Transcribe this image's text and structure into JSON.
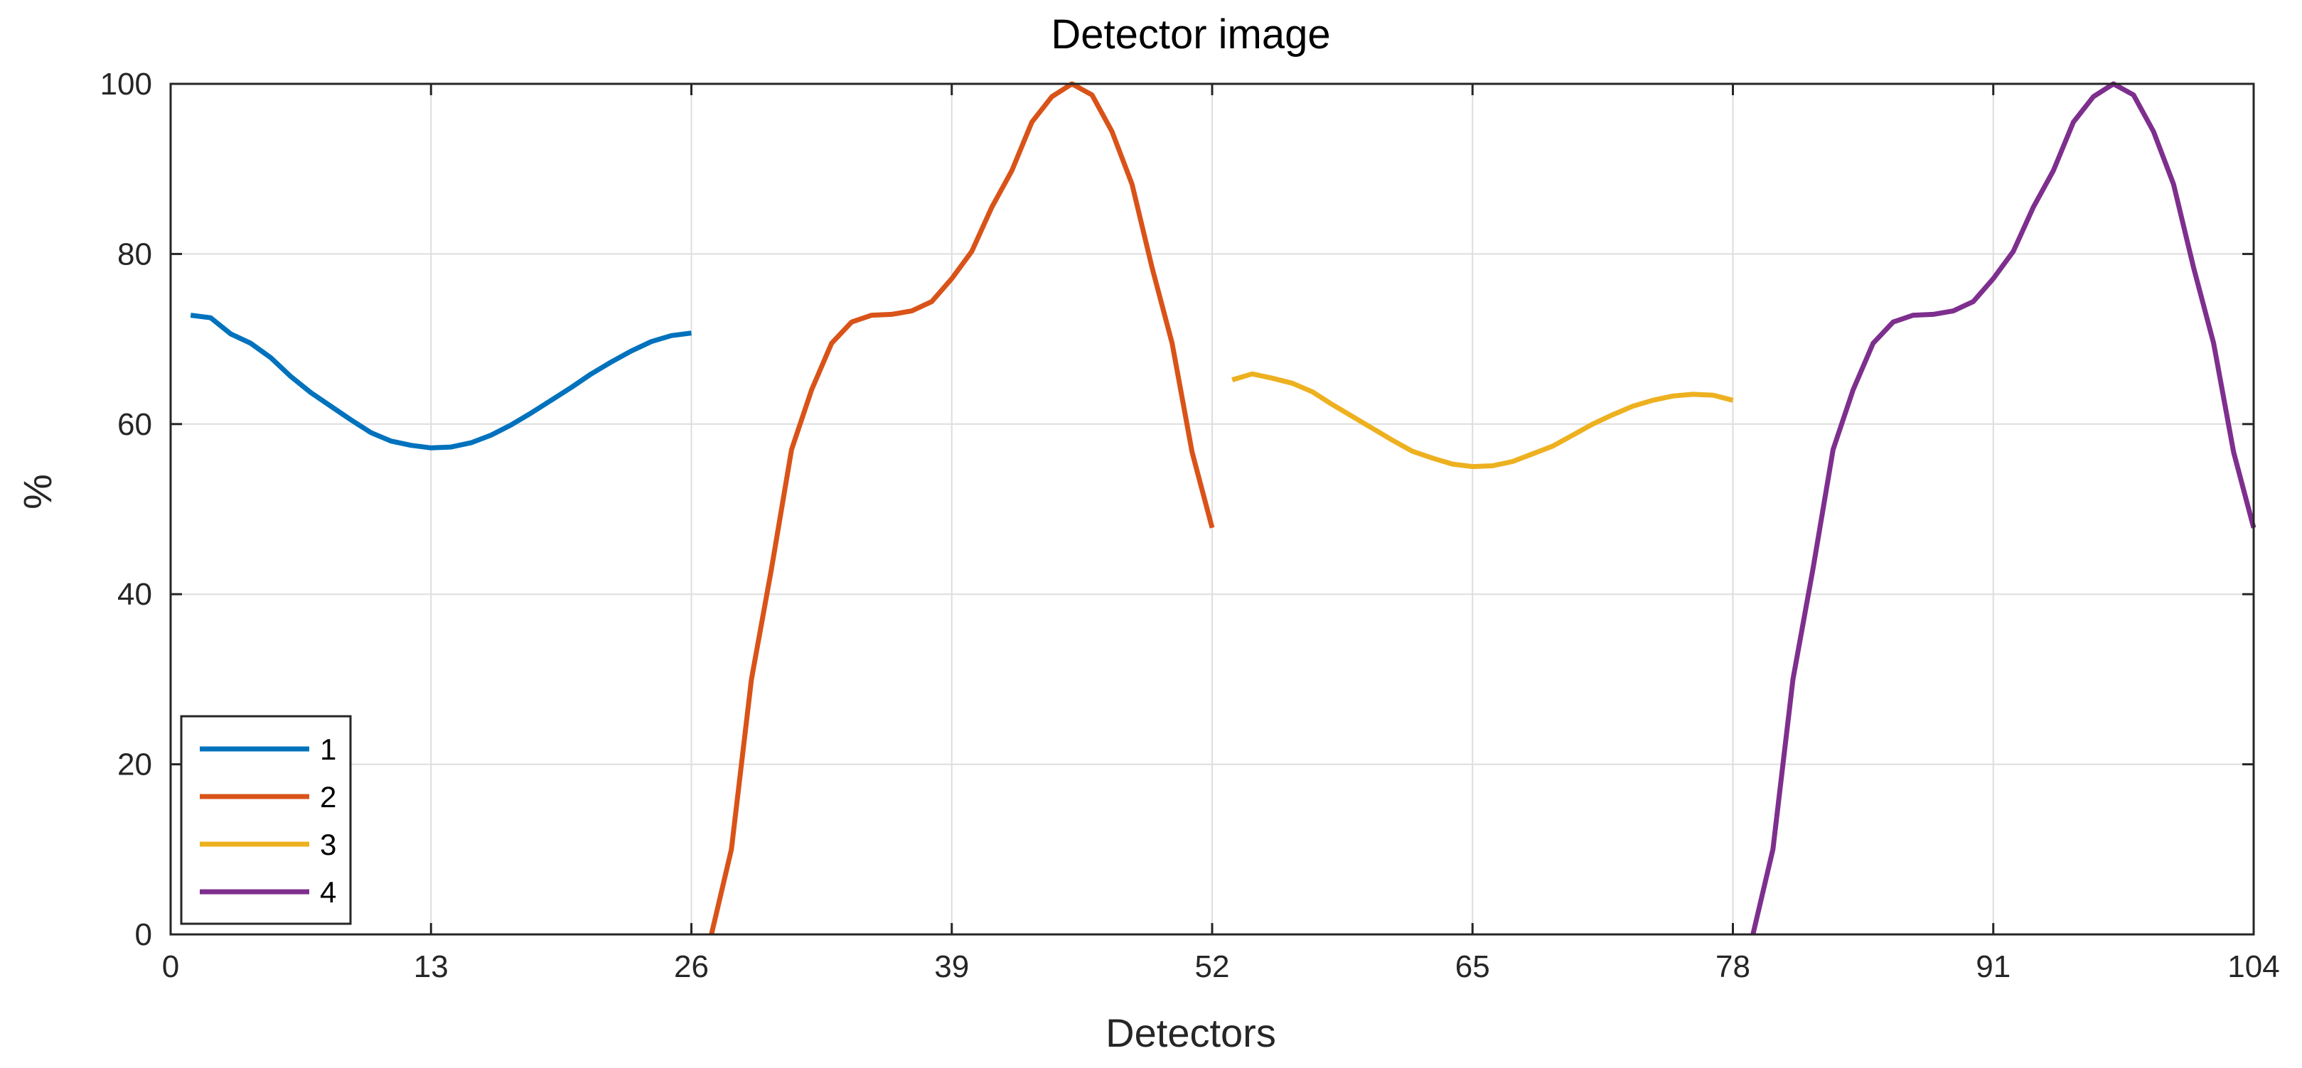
{
  "chart_data": {
    "type": "line",
    "title": "Detector image",
    "xlabel": "Detectors",
    "ylabel": "%",
    "xlim": [
      0,
      104
    ],
    "ylim": [
      0,
      100
    ],
    "xticks": [
      0,
      13,
      26,
      39,
      52,
      65,
      78,
      91,
      104
    ],
    "yticks": [
      0,
      20,
      40,
      60,
      80,
      100
    ],
    "grid": true,
    "legend_position": "bottom-left",
    "series": [
      {
        "name": "1",
        "color": "#0072BD",
        "x": [
          1,
          2,
          3,
          4,
          5,
          6,
          7,
          8,
          9,
          10,
          11,
          12,
          13,
          14,
          15,
          16,
          17,
          18,
          19,
          20,
          21,
          22,
          23,
          24,
          25,
          26
        ],
        "y": [
          72.8,
          72.5,
          70.6,
          69.5,
          67.8,
          65.6,
          63.7,
          62.1,
          60.5,
          59.0,
          58.0,
          57.5,
          57.2,
          57.3,
          57.8,
          58.7,
          59.9,
          61.3,
          62.8,
          64.3,
          65.9,
          67.3,
          68.6,
          69.7,
          70.4,
          70.7
        ]
      },
      {
        "name": "2",
        "color": "#D95319",
        "x": [
          27,
          28,
          29,
          30,
          31,
          32,
          33,
          34,
          35,
          36,
          37,
          38,
          39,
          40,
          41,
          42,
          43,
          44,
          45,
          46,
          47,
          48,
          49,
          50,
          51,
          52
        ],
        "y": [
          0,
          10,
          30,
          43,
          57,
          64,
          69.5,
          72,
          72.8,
          72.9,
          73.3,
          74.4,
          77.1,
          80.3,
          85.5,
          89.8,
          95.5,
          98.5,
          100,
          98.7,
          94.4,
          88.2,
          78.4,
          69.5,
          56.7,
          47.8
        ]
      },
      {
        "name": "3",
        "color": "#EDB120",
        "x": [
          53,
          54,
          55,
          56,
          57,
          58,
          59,
          60,
          61,
          62,
          63,
          64,
          65,
          66,
          67,
          68,
          69,
          70,
          71,
          72,
          73,
          74,
          75,
          76,
          77,
          78
        ],
        "y": [
          65.2,
          65.9,
          65.4,
          64.8,
          63.8,
          62.3,
          60.9,
          59.5,
          58.1,
          56.8,
          56.0,
          55.3,
          55.0,
          55.1,
          55.6,
          56.5,
          57.4,
          58.7,
          60.0,
          61.1,
          62.1,
          62.8,
          63.3,
          63.5,
          63.4,
          62.8
        ]
      },
      {
        "name": "4",
        "color": "#7E2F8E",
        "x": [
          79,
          80,
          81,
          82,
          83,
          84,
          85,
          86,
          87,
          88,
          89,
          90,
          91,
          92,
          93,
          94,
          95,
          96,
          97,
          98,
          99,
          100,
          101,
          102,
          103,
          104
        ],
        "y": [
          0,
          10,
          30,
          43,
          57,
          64,
          69.5,
          72,
          72.8,
          72.9,
          73.3,
          74.4,
          77.1,
          80.3,
          85.5,
          89.8,
          95.5,
          98.5,
          100,
          98.7,
          94.4,
          88.2,
          78.4,
          69.5,
          56.7,
          47.8
        ]
      }
    ]
  }
}
